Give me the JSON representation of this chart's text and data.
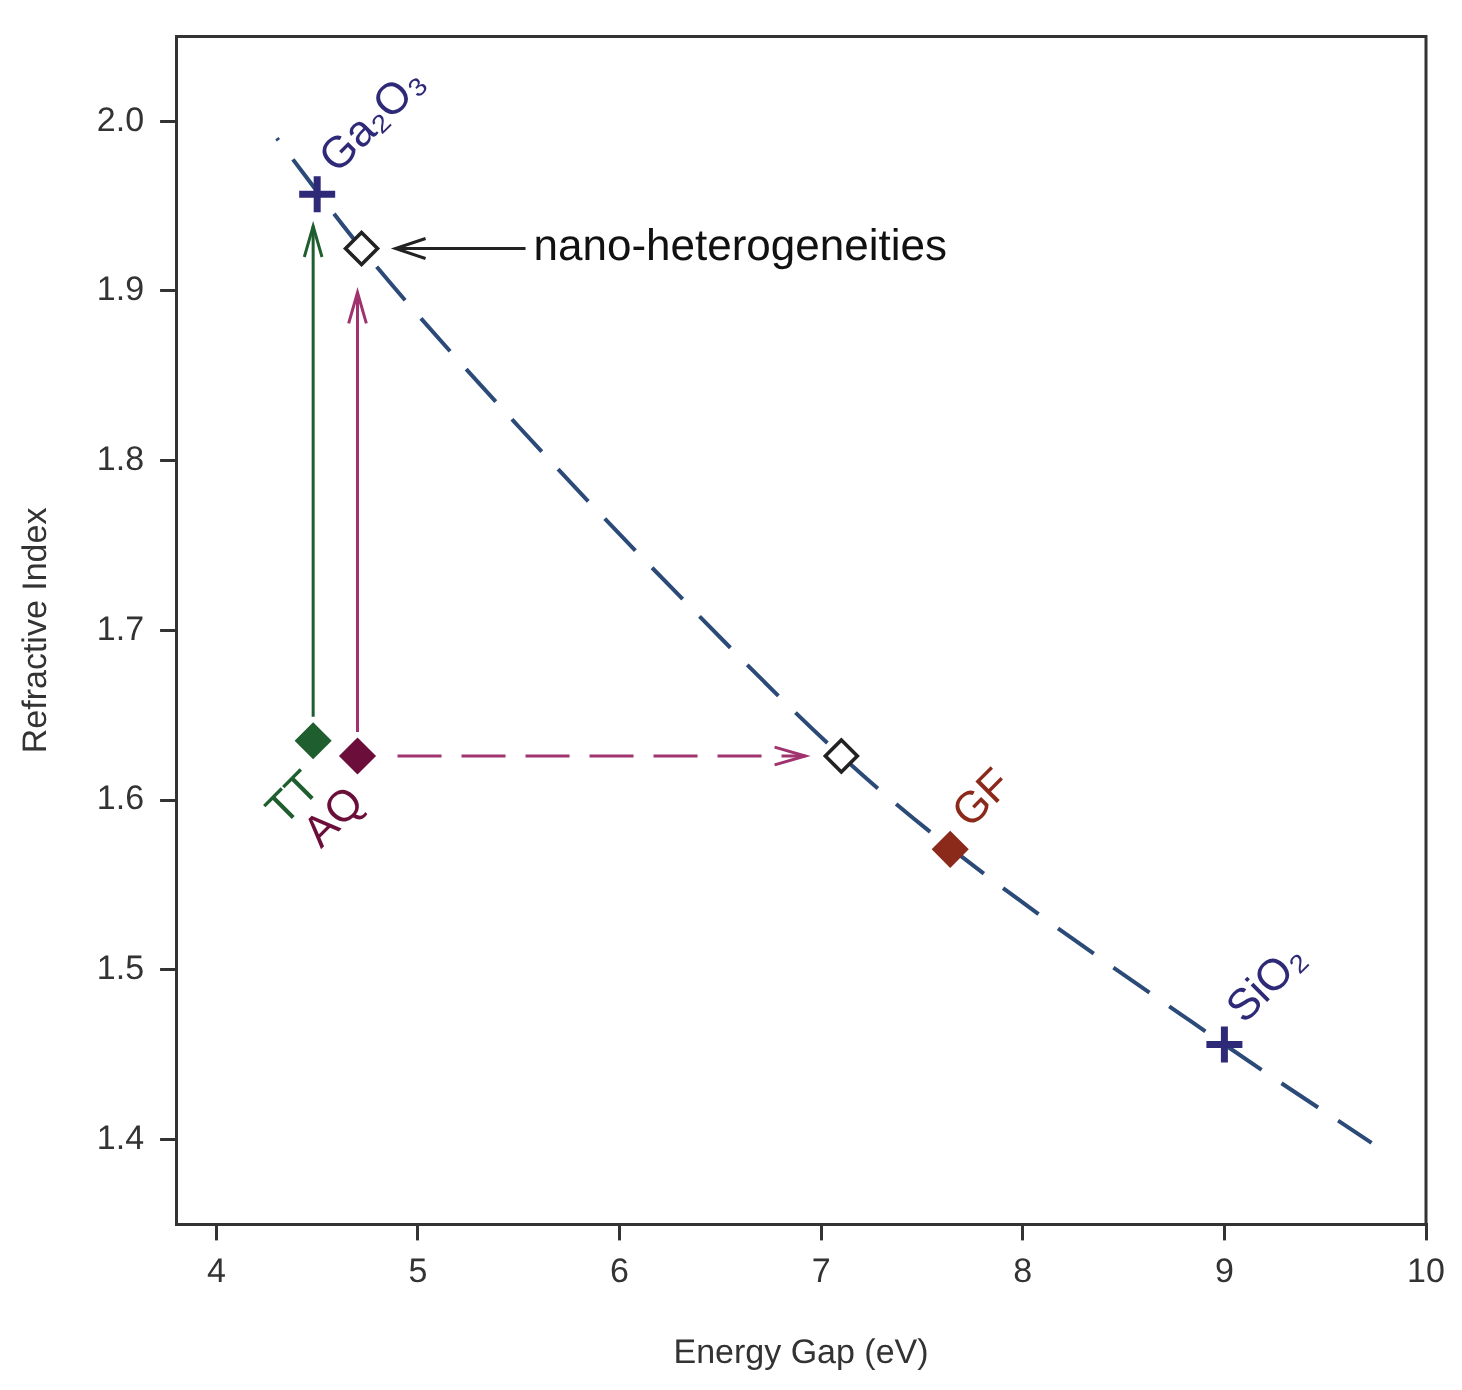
{
  "chart_data": {
    "type": "scatter",
    "xlabel": "Energy Gap (eV)",
    "ylabel": "Refractive Index",
    "xlim": [
      3.8,
      10
    ],
    "ylim": [
      1.35,
      2.05
    ],
    "xticks": [
      4,
      5,
      6,
      7,
      8,
      9,
      10
    ],
    "yticks": [
      {
        "value": 1.4,
        "label": "1.4"
      },
      {
        "value": 1.5,
        "label": "1.5"
      },
      {
        "value": 1.6,
        "label": "1.6"
      },
      {
        "value": 1.7,
        "label": "1.7"
      },
      {
        "value": 1.8,
        "label": "1.8"
      },
      {
        "value": 1.9,
        "label": "1.9"
      },
      {
        "value": 2,
        "label": "2.0"
      }
    ],
    "series": [
      {
        "type": "line",
        "color": "#2b4a78",
        "line_style": "dashed",
        "marker": "none",
        "x": [
          4.3,
          4.72,
          5.5,
          6.3,
          7.1,
          7.65,
          9.0,
          9.73
        ],
        "values": [
          1.99,
          1.925,
          1.82,
          1.72,
          1.626,
          1.571,
          1.456,
          1.398
        ]
      },
      {
        "name": "Ga₂O₃",
        "color": "#2e2a78",
        "marker": "cross",
        "x": [
          4.5
        ],
        "values": [
          1.957
        ]
      },
      {
        "color": "#222222",
        "marker": "diamond",
        "x": [
          4.72
        ],
        "values": [
          1.925
        ]
      },
      {
        "name": "TT",
        "color": "#1f5e2e",
        "marker": "diamond",
        "x": [
          4.48
        ],
        "values": [
          1.635
        ]
      },
      {
        "name": "AQ",
        "color": "#6b0f3a",
        "marker": "diamond",
        "x": [
          4.7
        ],
        "values": [
          1.626
        ]
      },
      {
        "color": "#222222",
        "marker": "diamond",
        "x": [
          7.1
        ],
        "values": [
          1.626
        ]
      },
      {
        "name": "GF",
        "color": "#8b2a1a",
        "marker": "diamond",
        "x": [
          7.64
        ],
        "values": [
          1.571
        ]
      },
      {
        "name": "SiO₂",
        "color": "#2e2a78",
        "marker": "cross",
        "x": [
          9.0
        ],
        "values": [
          1.456
        ]
      }
    ],
    "annotations": [
      "nano-heterogeneities"
    ]
  }
}
